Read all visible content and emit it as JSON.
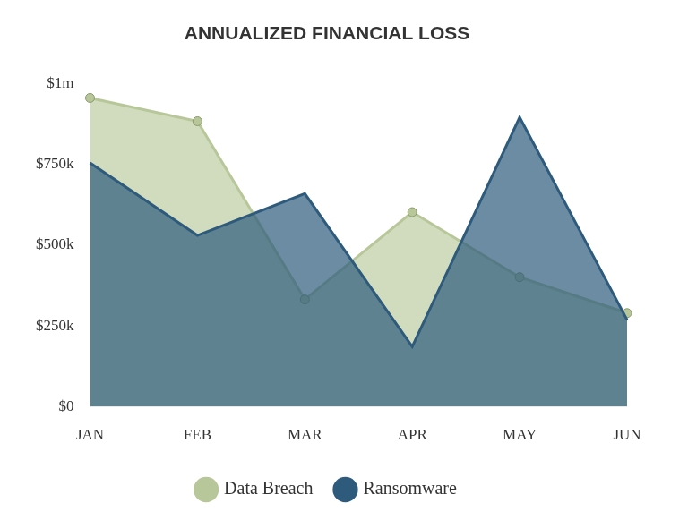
{
  "chart_data": {
    "type": "line",
    "title": "ANNUALIZED FINANCIAL LOSS",
    "categories": [
      "JAN",
      "FEB",
      "MAR",
      "APR",
      "MAY",
      "JUN"
    ],
    "series": [
      {
        "name": "Data Breach",
        "color": "#b8c79a",
        "marker": "circle",
        "values": [
          955000,
          883000,
          332000,
          602000,
          401000,
          290000
        ]
      },
      {
        "name": "Ransomware",
        "color": "#2e5b7c",
        "marker": "none",
        "values": [
          754000,
          530000,
          659000,
          186000,
          895000,
          269000
        ]
      }
    ],
    "ylim": [
      0,
      1000000
    ],
    "yticks": [
      {
        "value": 0,
        "label": "$0"
      },
      {
        "value": 250000,
        "label": "$250k"
      },
      {
        "value": 500000,
        "label": "$500k"
      },
      {
        "value": 750000,
        "label": "$750k"
      },
      {
        "value": 1000000,
        "label": "$1m"
      }
    ],
    "grid": false,
    "legend": "bottom"
  }
}
